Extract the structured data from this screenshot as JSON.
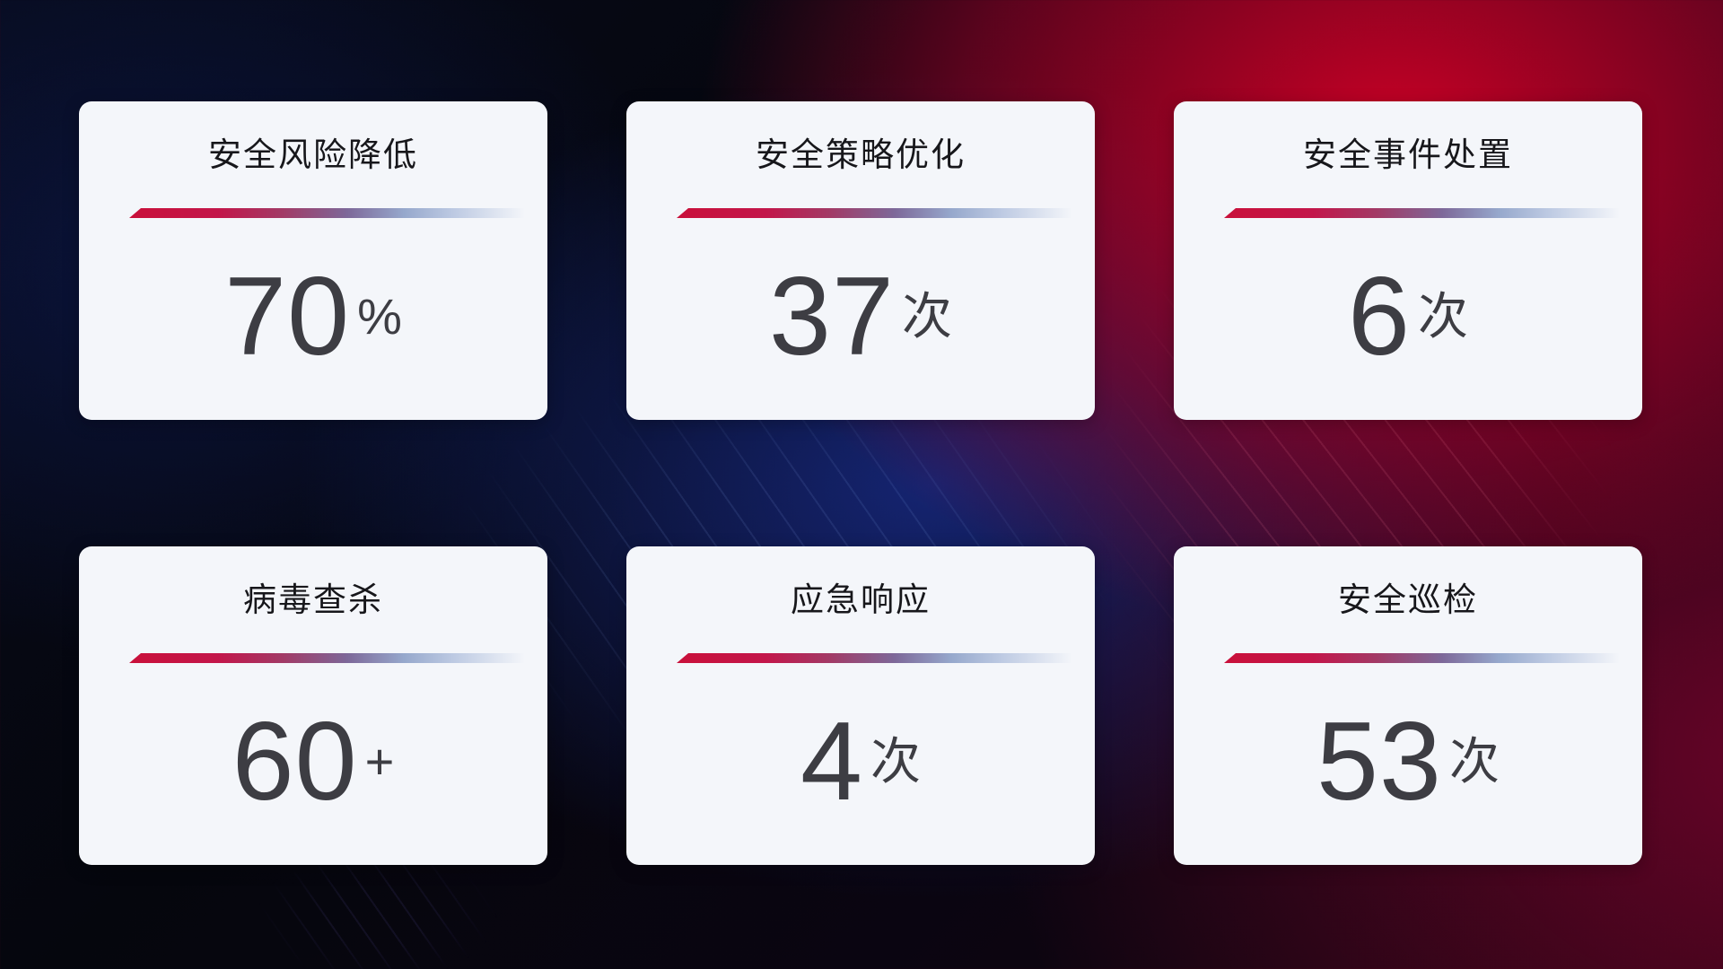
{
  "theme": {
    "card_bg": "#f4f6fa",
    "title_color": "#17171b",
    "value_color": "#3d3d43",
    "divider_red": "#c9103a",
    "divider_blue": "#a9bcd8",
    "bg_navy": "#0a1433",
    "bg_red": "#c00024"
  },
  "cards": [
    {
      "title": "安全风险降低",
      "value": "70",
      "unit": "%"
    },
    {
      "title": "安全策略优化",
      "value": "37",
      "unit": "次"
    },
    {
      "title": "安全事件处置",
      "value": "6",
      "unit": "次"
    },
    {
      "title": "病毒查杀",
      "value": "60",
      "unit": "+"
    },
    {
      "title": "应急响应",
      "value": "4",
      "unit": "次"
    },
    {
      "title": "安全巡检",
      "value": "53",
      "unit": "次"
    }
  ]
}
